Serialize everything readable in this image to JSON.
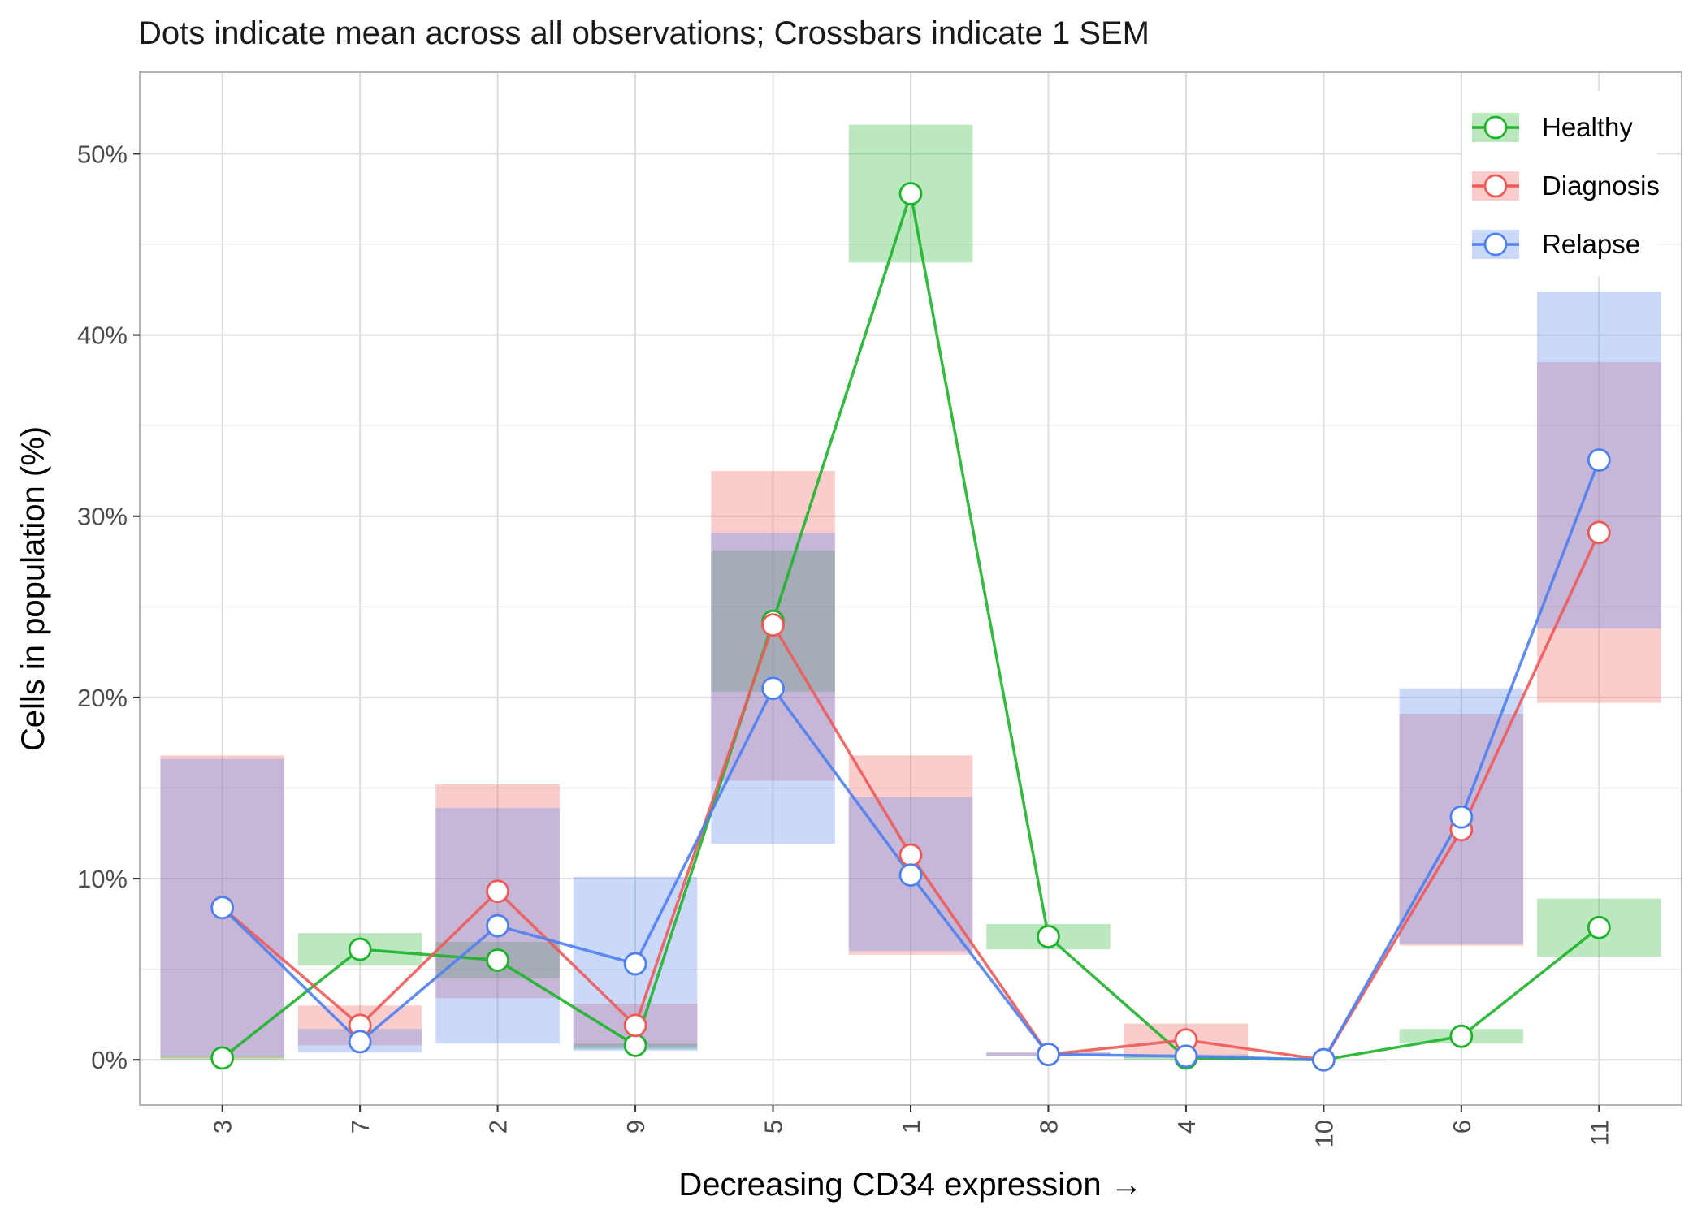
{
  "chart_data": {
    "type": "line",
    "title": "Dots indicate mean across all observations; Crossbars indicate 1 SEM",
    "xlabel": "Decreasing CD34 expression →",
    "ylabel": "Cells in population (%)",
    "categories": [
      "3",
      "7",
      "2",
      "9",
      "5",
      "1",
      "8",
      "4",
      "10",
      "6",
      "11"
    ],
    "ylim": [
      -2.5,
      54.5
    ],
    "yticks": [
      0,
      10,
      20,
      30,
      40,
      50
    ],
    "ytick_labels": [
      "0%",
      "10%",
      "20%",
      "30%",
      "40%",
      "50%"
    ],
    "grid": true,
    "legend_position": "top-right",
    "series": [
      {
        "name": "Healthy",
        "color": "#1DB42A",
        "fill": "#BAE8C1",
        "values": [
          0.1,
          6.1,
          5.5,
          0.8,
          24.2,
          47.8,
          6.8,
          0.1,
          0.0,
          1.3,
          7.3
        ],
        "lower": [
          0.0,
          5.2,
          4.5,
          0.6,
          20.3,
          44.0,
          6.1,
          0.0,
          0.0,
          0.9,
          5.7
        ],
        "upper": [
          0.2,
          7.0,
          6.5,
          0.9,
          28.1,
          51.6,
          7.5,
          0.2,
          0.0,
          1.7,
          8.9
        ]
      },
      {
        "name": "Diagnosis",
        "color": "#EE5A58",
        "fill": "#FCCACC",
        "values": [
          8.4,
          1.9,
          9.3,
          1.9,
          24.0,
          11.3,
          0.3,
          1.1,
          0.0,
          12.7,
          29.1
        ],
        "lower": [
          0.1,
          0.8,
          3.4,
          0.7,
          15.4,
          5.8,
          0.2,
          0.2,
          0.0,
          6.3,
          19.7
        ],
        "upper": [
          16.8,
          3.0,
          15.2,
          3.1,
          32.5,
          16.8,
          0.4,
          2.0,
          0.0,
          19.1,
          38.5
        ]
      },
      {
        "name": "Relapse",
        "color": "#4E80EE",
        "fill": "#C8D8FD",
        "values": [
          8.4,
          1.0,
          7.4,
          5.3,
          20.5,
          10.2,
          0.3,
          0.2,
          0.0,
          13.4,
          33.1
        ],
        "lower": [
          0.2,
          0.4,
          0.9,
          0.5,
          11.9,
          6.0,
          0.2,
          0.1,
          0.0,
          6.4,
          23.8
        ],
        "upper": [
          16.6,
          1.7,
          13.9,
          10.1,
          29.1,
          14.5,
          0.4,
          0.3,
          0.0,
          20.5,
          42.4
        ]
      }
    ]
  }
}
